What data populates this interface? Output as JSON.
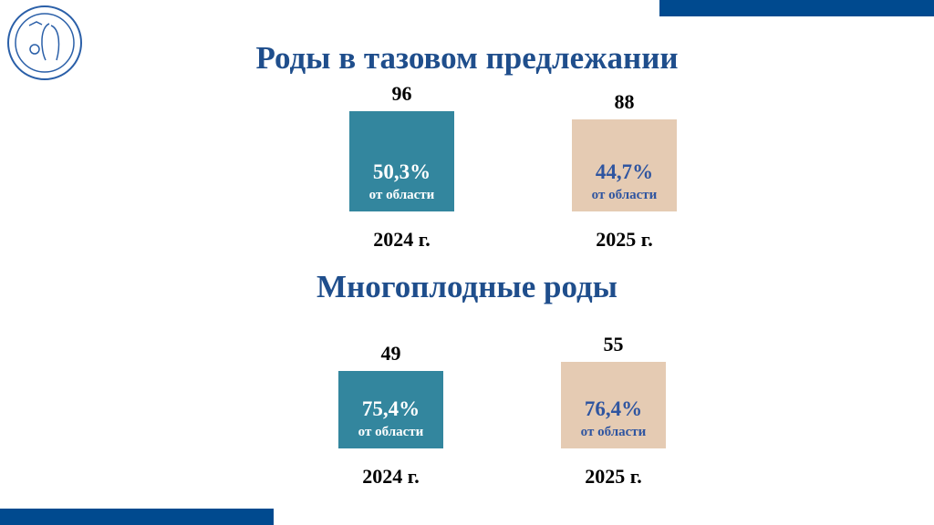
{
  "logo_name": "logo-emblem",
  "colors": {
    "band": "#004a8f",
    "title": "#1f4e8c",
    "bar_2024": "#33869e",
    "bar_2025": "#e5cbb3",
    "pct_2025": "#2f55a0"
  },
  "chart_data": [
    {
      "type": "bar",
      "title": "Роды в тазовом предлежании",
      "categories": [
        "2024 г.",
        "2025 г."
      ],
      "values": [
        96,
        88
      ],
      "value_labels": [
        "96",
        "88"
      ],
      "share_labels": [
        "50,3%",
        "44,7%"
      ],
      "share_sub": [
        "от области",
        "от области"
      ]
    },
    {
      "type": "bar",
      "title": "Многоплодные роды",
      "categories": [
        "2024 г.",
        "2025 г."
      ],
      "values": [
        49,
        55
      ],
      "value_labels": [
        "49",
        "55"
      ],
      "share_labels": [
        "75,4%",
        "76,4%"
      ],
      "share_sub": [
        "от области",
        "от области"
      ]
    }
  ]
}
